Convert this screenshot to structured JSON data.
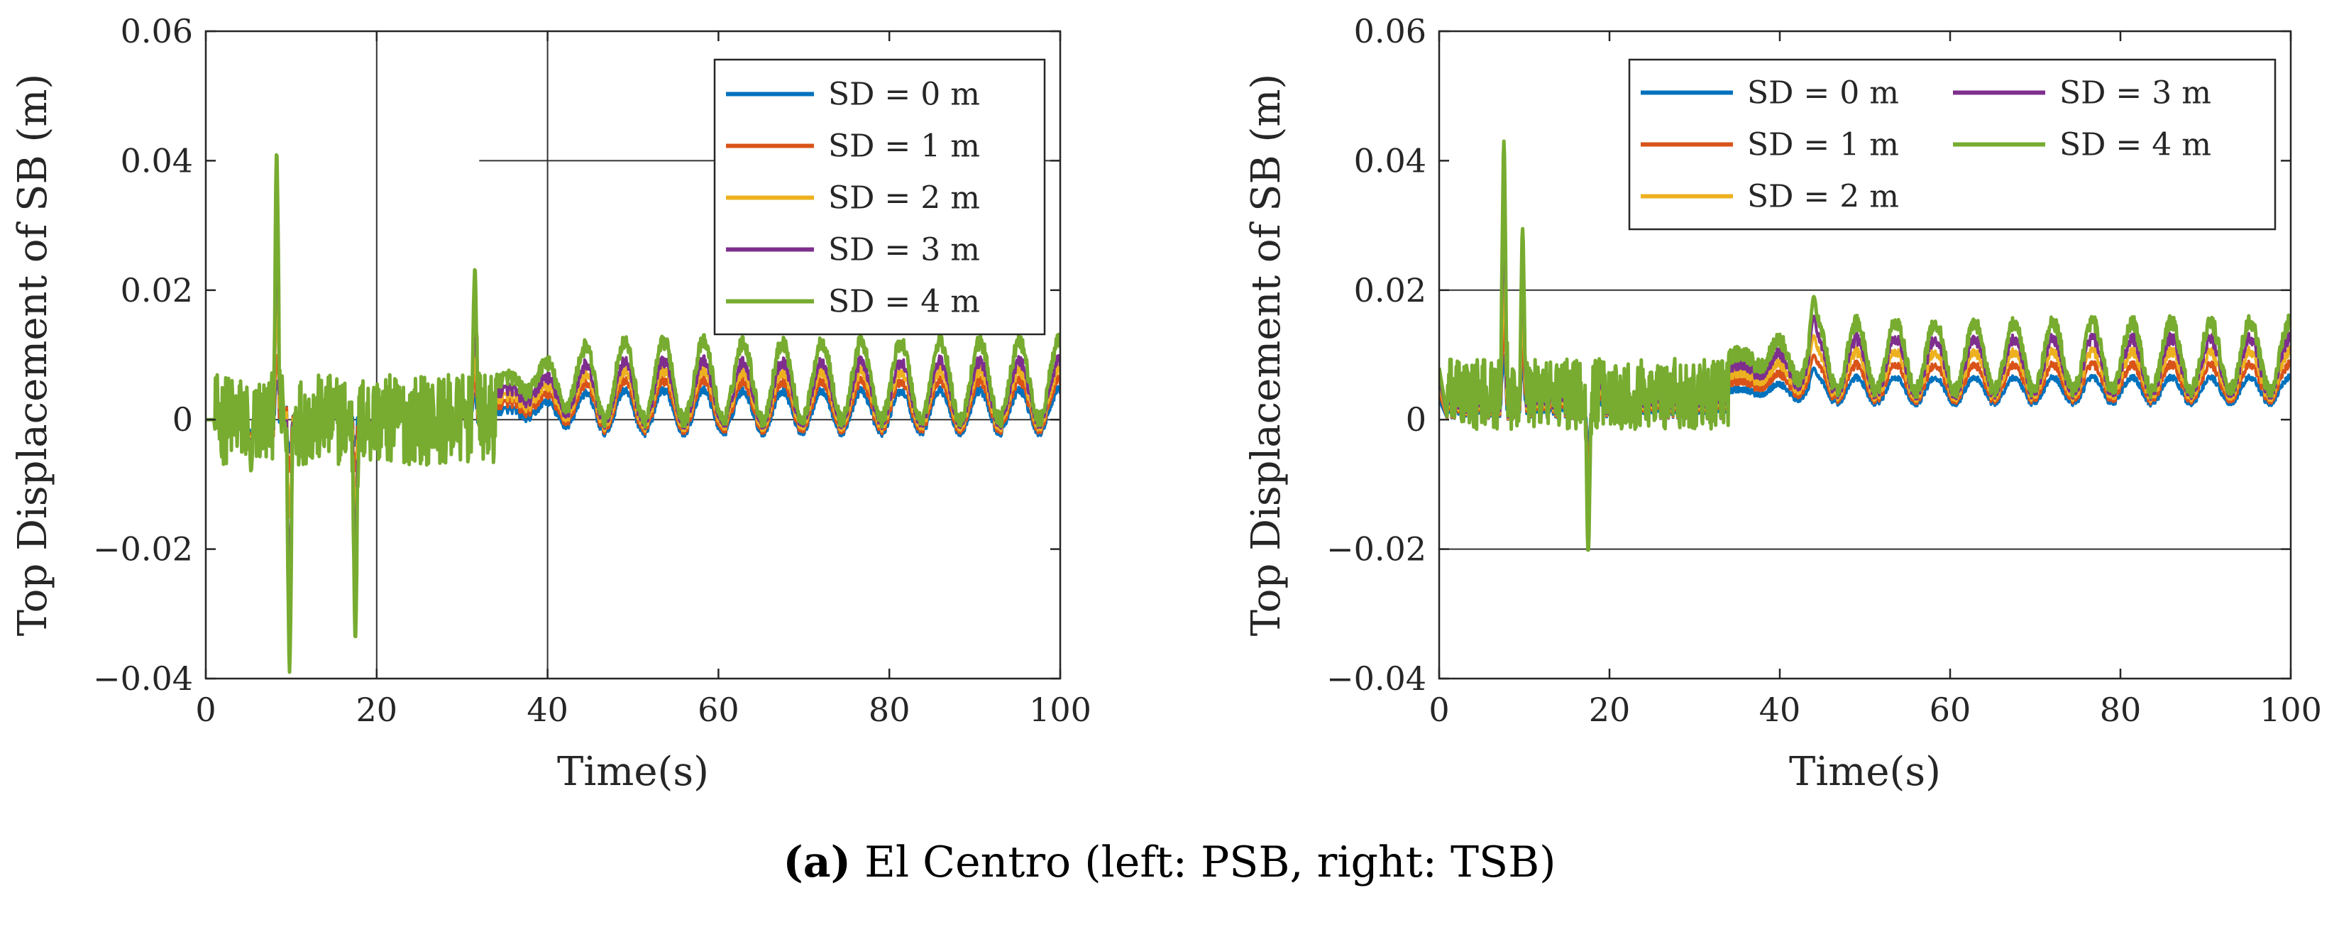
{
  "caption": {
    "letter": "(a)",
    "text": " El Centro (left: PSB, right: TSB)"
  },
  "chart_data": [
    {
      "type": "line",
      "title": "",
      "xlabel": "Time(s)",
      "ylabel": "Top Displacement of SB (m)",
      "xlim": [
        0,
        100
      ],
      "ylim": [
        -0.04,
        0.06
      ],
      "xticks": [
        0,
        20,
        40,
        60,
        80,
        100
      ],
      "xtick_labels": [
        "0",
        "20",
        "40",
        "60",
        "80",
        "100"
      ],
      "yticks": [
        -0.04,
        -0.02,
        0,
        0.02,
        0.04,
        0.06
      ],
      "ytick_labels": [
        "−0.04",
        "−0.02",
        "0",
        "0.02",
        "0.04",
        "0.06"
      ],
      "grid": false,
      "reference_lines": {
        "vertical_x": [
          20,
          40
        ],
        "horizontal": [
          {
            "y": 0.04,
            "x_from": 32,
            "x_to": 100
          },
          {
            "y": 0,
            "x_from": 0,
            "x_to": 100
          }
        ]
      },
      "legend": {
        "placement": "top-right",
        "columns": 1
      },
      "series": [
        {
          "name": "SD = 0 m",
          "color": "#0072BD",
          "peak_x": [
            5.3,
            8.3,
            9.8,
            17.5,
            31.5
          ],
          "peak_y": [
            -0.004,
            0.006,
            -0.005,
            -0.004,
            0.004
          ],
          "steady_low": -0.002,
          "steady_high": 0.0045
        },
        {
          "name": "SD = 1 m",
          "color": "#D95319",
          "peak_x": [
            5.3,
            8.3,
            9.8,
            17.5,
            31.5
          ],
          "peak_y": [
            -0.005,
            0.01,
            -0.008,
            -0.008,
            0.007
          ],
          "steady_low": -0.0015,
          "steady_high": 0.006
        },
        {
          "name": "SD = 2 m",
          "color": "#EDB120",
          "peak_x": [
            5.3,
            8.3,
            9.8,
            17.5,
            31.5
          ],
          "peak_y": [
            -0.006,
            0.018,
            -0.015,
            -0.014,
            0.011
          ],
          "steady_low": -0.001,
          "steady_high": 0.0075
        },
        {
          "name": "SD = 3 m",
          "color": "#7E2F8E",
          "peak_x": [
            5.3,
            8.3,
            9.8,
            17.5,
            31.5
          ],
          "peak_y": [
            -0.007,
            0.028,
            -0.025,
            -0.022,
            0.017
          ],
          "steady_low": -0.0005,
          "steady_high": 0.009
        },
        {
          "name": "SD = 4 m",
          "color": "#77AC30",
          "peak_x": [
            5.3,
            8.3,
            9.8,
            17.5,
            31.5
          ],
          "peak_y": [
            -0.008,
            0.0415,
            -0.039,
            -0.034,
            0.0235
          ],
          "steady_low": 0.0,
          "steady_high": 0.012
        }
      ]
    },
    {
      "type": "line",
      "title": "",
      "xlabel": "Time(s)",
      "ylabel": "Top Displacement of SB (m)",
      "xlim": [
        0,
        100
      ],
      "ylim": [
        -0.04,
        0.06
      ],
      "xticks": [
        0,
        20,
        40,
        60,
        80,
        100
      ],
      "xtick_labels": [
        "0",
        "20",
        "40",
        "60",
        "80",
        "100"
      ],
      "yticks": [
        -0.04,
        -0.02,
        0,
        0.02,
        0.04,
        0.06
      ],
      "ytick_labels": [
        "−0.04",
        "−0.02",
        "0",
        "0.02",
        "0.04",
        "0.06"
      ],
      "grid": false,
      "reference_lines": {
        "vertical_x": [],
        "horizontal": [
          {
            "y": 0.02,
            "x_from": 0,
            "x_to": 100
          },
          {
            "y": -0.02,
            "x_from": 0,
            "x_to": 100
          }
        ]
      },
      "legend": {
        "placement": "top-right",
        "columns": 2
      },
      "series": [
        {
          "name": "SD = 0 m",
          "color": "#0072BD",
          "peak_x": [
            7.6,
            9.8,
            17.5,
            44
          ],
          "peak_y": [
            0.01,
            0.009,
            -0.004,
            0.008
          ],
          "steady_low": 0.0025,
          "steady_high": 0.0065
        },
        {
          "name": "SD = 1 m",
          "color": "#D95319",
          "peak_x": [
            7.6,
            9.8,
            17.5,
            44
          ],
          "peak_y": [
            0.015,
            0.012,
            -0.008,
            0.01
          ],
          "steady_low": 0.003,
          "steady_high": 0.0085
        },
        {
          "name": "SD = 2 m",
          "color": "#EDB120",
          "peak_x": [
            7.6,
            9.8,
            17.5,
            44
          ],
          "peak_y": [
            0.022,
            0.017,
            -0.012,
            0.013
          ],
          "steady_low": 0.0035,
          "steady_high": 0.0105
        },
        {
          "name": "SD = 3 m",
          "color": "#7E2F8E",
          "peak_x": [
            7.6,
            9.8,
            17.5,
            44
          ],
          "peak_y": [
            0.031,
            0.023,
            -0.016,
            0.016
          ],
          "steady_low": 0.004,
          "steady_high": 0.0125
        },
        {
          "name": "SD = 4 m",
          "color": "#77AC30",
          "peak_x": [
            7.6,
            9.8,
            17.5,
            44
          ],
          "peak_y": [
            0.043,
            0.0295,
            -0.0205,
            0.019
          ],
          "steady_low": 0.0045,
          "steady_high": 0.015
        }
      ]
    }
  ]
}
